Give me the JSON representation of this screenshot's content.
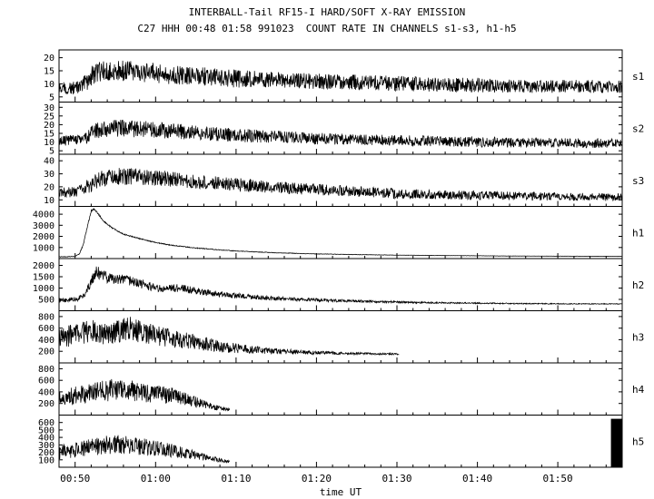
{
  "header": {
    "title": "INTERBALL-Tail RF15-I HARD/SOFT X-RAY EMISSION",
    "subtitle": "C27 HHH 00:48 01:58 991023  COUNT RATE IN CHANNELS s1-s3, h1-h5"
  },
  "chart_data": {
    "type": "line",
    "title": "INTERBALL-Tail RF15-I HARD/SOFT X-RAY EMISSION",
    "subtitle": "C27 HHH 00:48 01:58 991023  COUNT RATE IN CHANNELS s1-s3, h1-h5",
    "xlabel": "time UT",
    "x_range_minutes": [
      48,
      118
    ],
    "x_major_ticks": [
      {
        "minute": 50,
        "label": "00:50"
      },
      {
        "minute": 60,
        "label": "01:00"
      },
      {
        "minute": 70,
        "label": "01:10"
      },
      {
        "minute": 80,
        "label": "01:20"
      },
      {
        "minute": 90,
        "label": "01:30"
      },
      {
        "minute": 100,
        "label": "01:40"
      },
      {
        "minute": 110,
        "label": "01:50"
      }
    ],
    "x_minor_tick_step_minutes": 2,
    "grid": false,
    "line_color": "#000000",
    "background": "#ffffff",
    "panels": [
      {
        "label": "s1",
        "y_range": [
          3,
          23
        ],
        "y_ticks": [
          5,
          10,
          15,
          20
        ],
        "envelope": [
          [
            48,
            8,
            2.5
          ],
          [
            50.5,
            8.5,
            2.5
          ],
          [
            51.5,
            11,
            3.5
          ],
          [
            52.5,
            14.5,
            4
          ],
          [
            54,
            15,
            4
          ],
          [
            57,
            15,
            4
          ],
          [
            60,
            14,
            4
          ],
          [
            65,
            13,
            3.5
          ],
          [
            70,
            12,
            3.5
          ],
          [
            75,
            11.5,
            3
          ],
          [
            80,
            11,
            3
          ],
          [
            85,
            10.5,
            3
          ],
          [
            90,
            10,
            3
          ],
          [
            95,
            9.5,
            2.8
          ],
          [
            100,
            9.5,
            2.8
          ],
          [
            105,
            9,
            2.5
          ],
          [
            110,
            9,
            2.5
          ],
          [
            118,
            9,
            2.5
          ]
        ]
      },
      {
        "label": "s2",
        "y_range": [
          3,
          33
        ],
        "y_ticks": [
          5,
          10,
          15,
          20,
          25,
          30
        ],
        "envelope": [
          [
            48,
            11,
            3
          ],
          [
            50.5,
            11,
            3
          ],
          [
            51.5,
            13,
            4
          ],
          [
            52.5,
            16.5,
            4.5
          ],
          [
            54,
            18,
            5
          ],
          [
            56,
            18,
            5
          ],
          [
            58,
            17.5,
            5
          ],
          [
            60,
            17,
            4.5
          ],
          [
            63,
            16,
            4.5
          ],
          [
            66,
            15,
            4
          ],
          [
            70,
            14,
            4
          ],
          [
            75,
            13,
            3.5
          ],
          [
            80,
            12,
            3.5
          ],
          [
            85,
            11.5,
            3
          ],
          [
            90,
            11,
            3
          ],
          [
            95,
            10.5,
            3
          ],
          [
            100,
            10,
            3
          ],
          [
            110,
            9.5,
            2.8
          ],
          [
            118,
            9,
            2.8
          ]
        ]
      },
      {
        "label": "s3",
        "y_range": [
          5,
          45
        ],
        "y_ticks": [
          10,
          20,
          30,
          40
        ],
        "envelope": [
          [
            48,
            15,
            4
          ],
          [
            50,
            16,
            4.5
          ],
          [
            51,
            18,
            5
          ],
          [
            52,
            22,
            6
          ],
          [
            53,
            26,
            6
          ],
          [
            55,
            28,
            6.5
          ],
          [
            57,
            28,
            6.5
          ],
          [
            59,
            27,
            6
          ],
          [
            62,
            26,
            6
          ],
          [
            65,
            24,
            5.5
          ],
          [
            68,
            23,
            5
          ],
          [
            72,
            21,
            5
          ],
          [
            76,
            19,
            4.5
          ],
          [
            80,
            18,
            4.5
          ],
          [
            85,
            16.5,
            4
          ],
          [
            90,
            15,
            4
          ],
          [
            95,
            14,
            3.5
          ],
          [
            100,
            13.5,
            3.5
          ],
          [
            105,
            13,
            3.2
          ],
          [
            110,
            12.5,
            3
          ],
          [
            118,
            12,
            3
          ]
        ]
      },
      {
        "label": "h1",
        "y_range": [
          0,
          4700
        ],
        "y_ticks": [
          1000,
          2000,
          3000,
          4000
        ],
        "envelope": [
          [
            48,
            150,
            30
          ],
          [
            50,
            200,
            30
          ],
          [
            50.5,
            400,
            40
          ],
          [
            51,
            1200,
            60
          ],
          [
            51.5,
            2800,
            80
          ],
          [
            52,
            4300,
            80
          ],
          [
            52.3,
            4450,
            80
          ],
          [
            52.8,
            4100,
            80
          ],
          [
            53.5,
            3400,
            70
          ],
          [
            54.5,
            2800,
            60
          ],
          [
            56,
            2200,
            50
          ],
          [
            58,
            1800,
            50
          ],
          [
            60,
            1450,
            40
          ],
          [
            62,
            1200,
            40
          ],
          [
            65,
            950,
            35
          ],
          [
            68,
            780,
            30
          ],
          [
            70,
            680,
            30
          ],
          [
            75,
            520,
            25
          ],
          [
            80,
            420,
            20
          ],
          [
            85,
            360,
            20
          ],
          [
            90,
            310,
            15
          ],
          [
            95,
            280,
            15
          ],
          [
            100,
            250,
            12
          ],
          [
            105,
            230,
            12
          ],
          [
            110,
            215,
            10
          ],
          [
            118,
            200,
            10
          ]
        ]
      },
      {
        "label": "h2",
        "y_range": [
          0,
          2300
        ],
        "y_ticks": [
          500,
          1000,
          1500,
          2000
        ],
        "envelope": [
          [
            48,
            450,
            100
          ],
          [
            50,
            500,
            110
          ],
          [
            51,
            650,
            140
          ],
          [
            52,
            1300,
            260
          ],
          [
            52.6,
            1750,
            280
          ],
          [
            53.2,
            1600,
            260
          ],
          [
            54,
            1450,
            230
          ],
          [
            55,
            1350,
            210
          ],
          [
            56,
            1400,
            220
          ],
          [
            57.5,
            1250,
            200
          ],
          [
            59,
            1100,
            190
          ],
          [
            60.5,
            1000,
            180
          ],
          [
            62,
            980,
            175
          ],
          [
            63,
            1020,
            180
          ],
          [
            64.5,
            900,
            160
          ],
          [
            66,
            820,
            150
          ],
          [
            68,
            730,
            130
          ],
          [
            70,
            660,
            120
          ],
          [
            72.5,
            590,
            100
          ],
          [
            75,
            540,
            90
          ],
          [
            78,
            500,
            80
          ],
          [
            81,
            460,
            70
          ],
          [
            85,
            420,
            55
          ],
          [
            89,
            390,
            45
          ],
          [
            93,
            360,
            38
          ],
          [
            97,
            345,
            32
          ],
          [
            101,
            330,
            26
          ],
          [
            106,
            315,
            22
          ],
          [
            112,
            305,
            18
          ],
          [
            118,
            300,
            16
          ]
        ]
      },
      {
        "label": "h3",
        "y_range": [
          0,
          900
        ],
        "y_ticks": [
          200,
          400,
          600,
          800
        ],
        "t_end": 90.3,
        "envelope": [
          [
            48,
            430,
            180
          ],
          [
            49.5,
            470,
            190
          ],
          [
            51,
            510,
            200
          ],
          [
            52,
            550,
            210
          ],
          [
            53,
            510,
            200
          ],
          [
            54,
            480,
            190
          ],
          [
            55,
            520,
            200
          ],
          [
            56,
            560,
            210
          ],
          [
            57,
            590,
            210
          ],
          [
            58,
            550,
            200
          ],
          [
            59.5,
            500,
            185
          ],
          [
            61,
            450,
            170
          ],
          [
            62.5,
            420,
            160
          ],
          [
            64,
            380,
            145
          ],
          [
            66,
            330,
            125
          ],
          [
            68,
            290,
            105
          ],
          [
            70,
            255,
            85
          ],
          [
            72,
            230,
            68
          ],
          [
            74,
            210,
            55
          ],
          [
            76,
            195,
            45
          ],
          [
            79,
            180,
            34
          ],
          [
            82,
            170,
            26
          ],
          [
            85,
            162,
            20
          ],
          [
            88,
            156,
            16
          ],
          [
            90.3,
            152,
            14
          ]
        ]
      },
      {
        "label": "h4",
        "y_range": [
          0,
          900
        ],
        "y_ticks": [
          200,
          400,
          600,
          800
        ],
        "t_end": 69.2,
        "envelope": [
          [
            48,
            300,
            150
          ],
          [
            50,
            330,
            160
          ],
          [
            52,
            380,
            175
          ],
          [
            53.5,
            410,
            185
          ],
          [
            55,
            445,
            195
          ],
          [
            56,
            430,
            185
          ],
          [
            57.5,
            410,
            180
          ],
          [
            59,
            390,
            170
          ],
          [
            60.5,
            370,
            160
          ],
          [
            62,
            330,
            145
          ],
          [
            63,
            300,
            130
          ],
          [
            64,
            262,
            112
          ],
          [
            65,
            225,
            92
          ],
          [
            66,
            185,
            72
          ],
          [
            67,
            148,
            54
          ],
          [
            68,
            115,
            38
          ],
          [
            69.2,
            92,
            26
          ]
        ]
      },
      {
        "label": "h5",
        "y_range": [
          0,
          700
        ],
        "y_ticks": [
          100,
          200,
          300,
          400,
          500,
          600
        ],
        "t_end": 69.2,
        "envelope": [
          [
            48,
            200,
            95
          ],
          [
            50,
            230,
            105
          ],
          [
            52,
            270,
            120
          ],
          [
            53.5,
            295,
            128
          ],
          [
            55,
            305,
            130
          ],
          [
            56.5,
            295,
            125
          ],
          [
            58,
            278,
            115
          ],
          [
            59.5,
            262,
            108
          ],
          [
            61,
            240,
            98
          ],
          [
            62.5,
            215,
            86
          ],
          [
            63.5,
            195,
            76
          ],
          [
            64.5,
            172,
            64
          ],
          [
            65.5,
            150,
            54
          ],
          [
            66.5,
            126,
            43
          ],
          [
            67.5,
            104,
            33
          ],
          [
            68.5,
            86,
            25
          ],
          [
            69.2,
            78,
            21
          ]
        ],
        "end_bar": {
          "t_start": 116.6,
          "t_end": 118,
          "y_top": 650
        }
      }
    ]
  }
}
